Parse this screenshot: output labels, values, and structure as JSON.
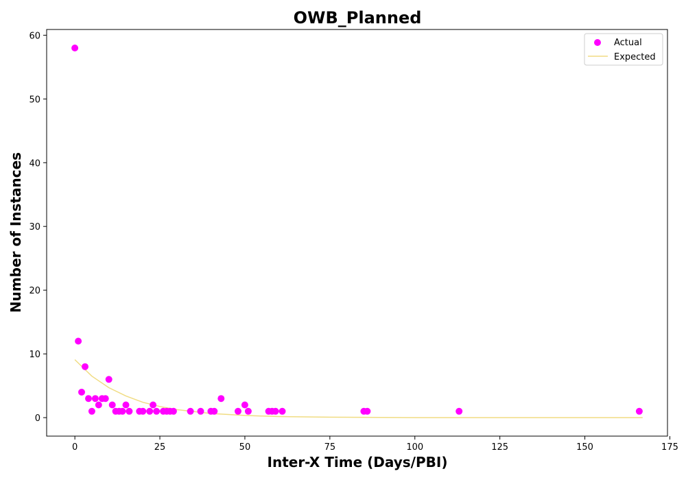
{
  "chart_data": {
    "type": "scatter",
    "title": "OWB_Planned",
    "xlabel": "Inter-X Time (Days/PBI)",
    "ylabel": "Number of Instances",
    "xlim": [
      -8.3,
      174.3
    ],
    "ylim": [
      -2.9,
      60.9
    ],
    "xticks": [
      0,
      25,
      50,
      75,
      100,
      125,
      150,
      175
    ],
    "yticks": [
      0,
      10,
      20,
      30,
      40,
      50,
      60
    ],
    "grid": false,
    "legend_position": "top-right",
    "series": [
      {
        "name": "Actual",
        "type": "scatter",
        "color": "#ff00ff",
        "points": [
          [
            0,
            58
          ],
          [
            1,
            12
          ],
          [
            2,
            4
          ],
          [
            3,
            8
          ],
          [
            4,
            3
          ],
          [
            5,
            1
          ],
          [
            6,
            3
          ],
          [
            7,
            2
          ],
          [
            8,
            3
          ],
          [
            9,
            3
          ],
          [
            10,
            6
          ],
          [
            11,
            2
          ],
          [
            12,
            1
          ],
          [
            13,
            1
          ],
          [
            14,
            1
          ],
          [
            15,
            2
          ],
          [
            16,
            1
          ],
          [
            19,
            1
          ],
          [
            20,
            1
          ],
          [
            22,
            1
          ],
          [
            23,
            2
          ],
          [
            24,
            1
          ],
          [
            26,
            1
          ],
          [
            27,
            1
          ],
          [
            28,
            1
          ],
          [
            29,
            1
          ],
          [
            34,
            1
          ],
          [
            37,
            1
          ],
          [
            40,
            1
          ],
          [
            41,
            1
          ],
          [
            43,
            3
          ],
          [
            48,
            1
          ],
          [
            50,
            2
          ],
          [
            51,
            1
          ],
          [
            57,
            1
          ],
          [
            58,
            1
          ],
          [
            59,
            1
          ],
          [
            61,
            1
          ],
          [
            85,
            1
          ],
          [
            86,
            1
          ],
          [
            113,
            1
          ],
          [
            166,
            1
          ]
        ]
      },
      {
        "name": "Expected",
        "type": "line",
        "color": "#f0dc82",
        "points": [
          [
            0,
            9.1
          ],
          [
            5,
            6.5
          ],
          [
            10,
            4.7
          ],
          [
            15,
            3.4
          ],
          [
            20,
            2.4
          ],
          [
            25,
            1.75
          ],
          [
            30,
            1.25
          ],
          [
            40,
            0.65
          ],
          [
            50,
            0.34
          ],
          [
            60,
            0.17
          ],
          [
            75,
            0.07
          ],
          [
            100,
            0.01
          ],
          [
            125,
            0.0
          ],
          [
            150,
            0.0
          ],
          [
            167,
            0.0
          ]
        ]
      }
    ]
  }
}
